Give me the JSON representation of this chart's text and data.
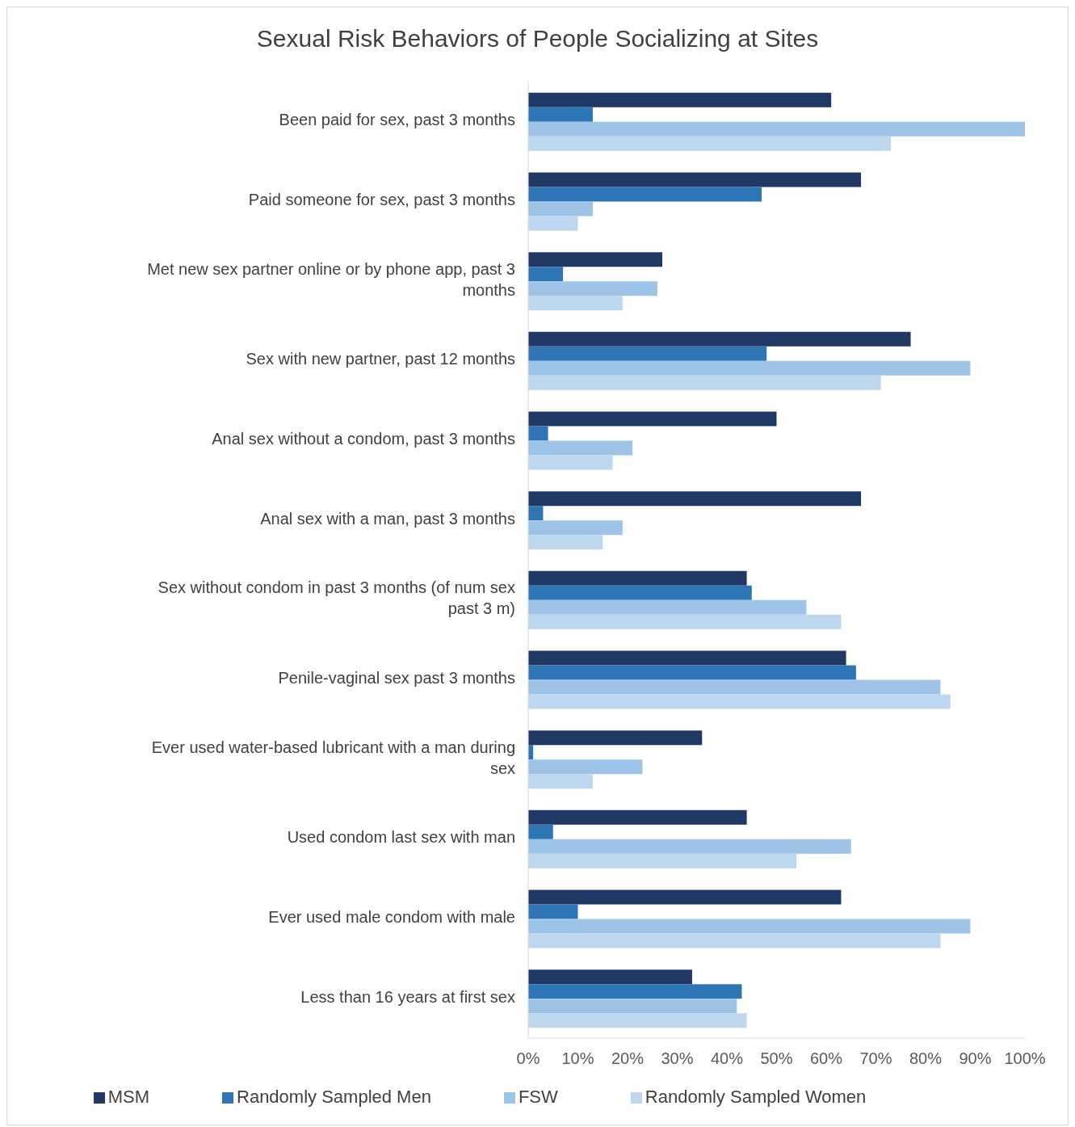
{
  "chart_data": {
    "type": "bar",
    "orientation": "horizontal",
    "title": "Sexual Risk Behaviors of People Socializing at Sites",
    "categories": [
      "Been paid for sex, past 3 months",
      "Paid someone for sex, past 3 months",
      "Met new sex partner online or by phone app, past 3 months",
      "Sex with new partner, past 12 months",
      "Anal sex without a condom, past 3 months",
      "Anal sex with a man, past 3 months",
      "Sex without condom in past 3 months (of num sex past 3 m)",
      "Penile-vaginal sex past 3 months",
      "Ever used water-based lubricant with a man during sex",
      "Used condom last sex with man",
      "Ever used male condom with male",
      "Less than 16 years at first sex"
    ],
    "series": [
      {
        "name": "MSM",
        "color": "#203864",
        "values": [
          61,
          67,
          27,
          77,
          50,
          67,
          44,
          64,
          35,
          44,
          63,
          33
        ]
      },
      {
        "name": "Randomly Sampled Men",
        "color": "#2e75b6",
        "values": [
          13,
          47,
          7,
          48,
          4,
          3,
          45,
          66,
          1,
          5,
          10,
          43
        ]
      },
      {
        "name": "FSW",
        "color": "#9dc3e6",
        "values": [
          100,
          13,
          26,
          89,
          21,
          19,
          56,
          83,
          23,
          65,
          89,
          42
        ]
      },
      {
        "name": "Randomly Sampled Women",
        "color": "#bdd7ee",
        "values": [
          73,
          10,
          19,
          71,
          17,
          15,
          63,
          85,
          13,
          54,
          83,
          44
        ]
      }
    ],
    "xlim": [
      0,
      100
    ],
    "xticks": [
      {
        "value": 0,
        "label": "0%"
      },
      {
        "value": 10,
        "label": "10%"
      },
      {
        "value": 20,
        "label": "20%"
      },
      {
        "value": 30,
        "label": "30%"
      },
      {
        "value": 40,
        "label": "40%"
      },
      {
        "value": 50,
        "label": "50%"
      },
      {
        "value": 60,
        "label": "60%"
      },
      {
        "value": 70,
        "label": "70%"
      },
      {
        "value": 80,
        "label": "80%"
      },
      {
        "value": 90,
        "label": "90%"
      },
      {
        "value": 100,
        "label": "100%"
      }
    ],
    "grid": false,
    "legend": "bottom"
  }
}
